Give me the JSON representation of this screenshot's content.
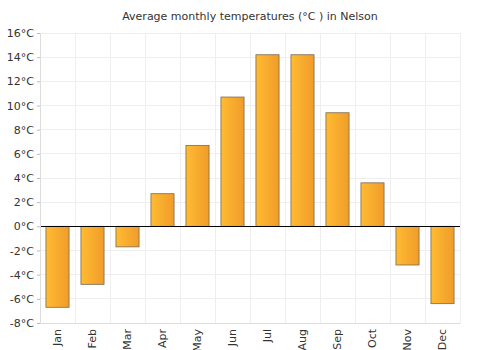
{
  "chart_data": {
    "type": "bar",
    "title": "Average monthly temperatures (°C ) in Nelson",
    "categories": [
      "Jan",
      "Feb",
      "Mar",
      "Apr",
      "May",
      "Jun",
      "Jul",
      "Aug",
      "Sep",
      "Oct",
      "Nov",
      "Dec"
    ],
    "values": [
      -6.7,
      -4.8,
      -1.7,
      2.7,
      6.7,
      10.7,
      14.2,
      14.2,
      9.4,
      3.6,
      -3.2,
      -6.4
    ],
    "color": "#fda52c",
    "ylim": [
      -8,
      16
    ],
    "yticks": [
      {
        "value": -8,
        "label": "-8°C"
      },
      {
        "value": -6,
        "label": "-6°C"
      },
      {
        "value": -4,
        "label": "-4°C"
      },
      {
        "value": -2,
        "label": "-2°C"
      },
      {
        "value": 0,
        "label": "0°C"
      },
      {
        "value": 2,
        "label": "2°C"
      },
      {
        "value": 4,
        "label": "4°C"
      },
      {
        "value": 6,
        "label": "6°C"
      },
      {
        "value": 8,
        "label": "8°C"
      },
      {
        "value": 10,
        "label": "10°C"
      },
      {
        "value": 12,
        "label": "12°C"
      },
      {
        "value": 14,
        "label": "14°C"
      },
      {
        "value": 16,
        "label": "16°C"
      }
    ],
    "grid": true
  }
}
